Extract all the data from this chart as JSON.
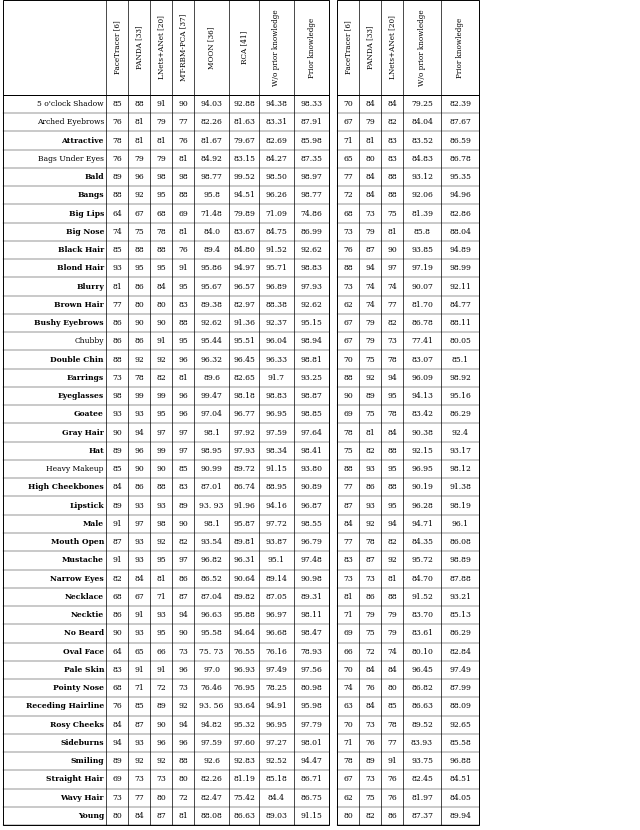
{
  "attributes": [
    "5 o'clock Shadow",
    "Arched Eyebrows",
    "Attractive",
    "Bags Under Eyes",
    "Bald",
    "Bangs",
    "Big Lips",
    "Big Nose",
    "Black Hair",
    "Blond Hair",
    "Blurry",
    "Brown Hair",
    "Bushy Eyebrows",
    "Chubby",
    "Double Chin",
    "Earrings",
    "Eyeglasses",
    "Goatee",
    "Gray Hair",
    "Hat",
    "Heavy Makeup",
    "High Cheekbones",
    "Lipstick",
    "Male",
    "Mouth Open",
    "Mustache",
    "Narrow Eyes",
    "Necklace",
    "Necktie",
    "No Beard",
    "Oval Face",
    "Pale Skin",
    "Pointy Nose",
    "Receding Hairline",
    "Rosy Cheeks",
    "Sideburns",
    "Smiling",
    "Straight Hair",
    "Wavy Hair",
    "Young"
  ],
  "bold_attrs": [
    "Attractive",
    "Bald",
    "Bangs",
    "Big Lips",
    "Big Nose",
    "Black Hair",
    "Blond Hair",
    "Blurry",
    "Brown Hair",
    "Bushy Eyebrows",
    "Double Chin",
    "Earrings",
    "Eyeglasses",
    "Goatee",
    "Gray Hair",
    "Hat",
    "High Cheekbones",
    "Lipstick",
    "Male",
    "Mouth Open",
    "Mustache",
    "Narrow Eyes",
    "Necklace",
    "Necktie",
    "No Beard",
    "Oval Face",
    "Pale Skin",
    "Pointy Nose",
    "Receding Hairline",
    "Rosy Cheeks",
    "Sideburns",
    "Smiling",
    "Straight Hair",
    "Wavy Hair",
    "Young"
  ],
  "left_headers": [
    "FaceTracer [6]",
    "PANDA [33]",
    "LNets+ANet [20]",
    "MT-RBM-PCA [37]",
    "MOON [36]",
    "RCA [41]",
    "W/o prior knowledge",
    "Prior knowledge"
  ],
  "left_data": [
    [
      85,
      88,
      91,
      90,
      "94.03",
      "92.88",
      "94.38",
      "98.33"
    ],
    [
      76,
      81,
      79,
      77,
      "82.26",
      "81.63",
      "83.31",
      "87.91"
    ],
    [
      78,
      81,
      81,
      76,
      "81.67",
      "79.67",
      "82.69",
      "85.98"
    ],
    [
      76,
      79,
      79,
      81,
      "84.92",
      "83.15",
      "84.27",
      "87.35"
    ],
    [
      89,
      96,
      98,
      98,
      "98.77",
      "99.52",
      "98.50",
      "98.97"
    ],
    [
      88,
      92,
      95,
      88,
      "95.8",
      "94.51",
      "96.26",
      "98.77"
    ],
    [
      64,
      67,
      68,
      69,
      "71.48",
      "79.89",
      "71.09",
      "74.86"
    ],
    [
      74,
      75,
      78,
      81,
      "84.0",
      "83.67",
      "84.75",
      "86.99"
    ],
    [
      85,
      88,
      88,
      76,
      "89.4",
      "84.80",
      "91.52",
      "92.62"
    ],
    [
      93,
      95,
      95,
      91,
      "95.86",
      "94.97",
      "95.71",
      "98.83"
    ],
    [
      81,
      86,
      84,
      95,
      "95.67",
      "96.57",
      "96.89",
      "97.93"
    ],
    [
      77,
      80,
      80,
      83,
      "89.38",
      "82.97",
      "88.38",
      "92.62"
    ],
    [
      86,
      90,
      90,
      88,
      "92.62",
      "91.36",
      "92.37",
      "95.15"
    ],
    [
      86,
      86,
      91,
      95,
      "95.44",
      "95.51",
      "96.04",
      "98.94"
    ],
    [
      88,
      92,
      92,
      96,
      "96.32",
      "96.45",
      "96.33",
      "98.81"
    ],
    [
      73,
      78,
      82,
      81,
      "89.6",
      "82.65",
      "91.7",
      "93.25"
    ],
    [
      98,
      99,
      99,
      96,
      "99.47",
      "98.18",
      "98.83",
      "98.87"
    ],
    [
      93,
      93,
      95,
      96,
      "97.04",
      "96.77",
      "96.95",
      "98.85"
    ],
    [
      90,
      94,
      97,
      97,
      "98.1",
      "97.92",
      "97.59",
      "97.64"
    ],
    [
      89,
      96,
      99,
      97,
      "98.95",
      "97.93",
      "98.34",
      "98.41"
    ],
    [
      85,
      90,
      90,
      85,
      "90.99",
      "89.72",
      "91.15",
      "93.80"
    ],
    [
      84,
      86,
      88,
      83,
      "87.01",
      "86.74",
      "88.95",
      "90.89"
    ],
    [
      89,
      93,
      93,
      89,
      "93. 93",
      "91.96",
      "94.16",
      "96.87"
    ],
    [
      91,
      97,
      98,
      90,
      "98.1",
      "95.87",
      "97.72",
      "98.55"
    ],
    [
      87,
      93,
      92,
      82,
      "93.54",
      "89.81",
      "93.87",
      "96.79"
    ],
    [
      91,
      93,
      95,
      97,
      "96.82",
      "96.31",
      "95.1",
      "97.48"
    ],
    [
      82,
      84,
      81,
      86,
      "86.52",
      "90.64",
      "89.14",
      "90.98"
    ],
    [
      68,
      67,
      71,
      87,
      "87.04",
      "89.82",
      "87.05",
      "89.31"
    ],
    [
      86,
      91,
      93,
      94,
      "96.63",
      "95.88",
      "96.97",
      "98.11"
    ],
    [
      90,
      93,
      95,
      90,
      "95.58",
      "94.64",
      "96.68",
      "98.47"
    ],
    [
      64,
      65,
      66,
      73,
      "75. 73",
      "76.55",
      "76.16",
      "78.93"
    ],
    [
      83,
      91,
      91,
      96,
      "97.0",
      "96.93",
      "97.49",
      "97.56"
    ],
    [
      68,
      71,
      72,
      73,
      "76.46",
      "76.95",
      "78.25",
      "80.98"
    ],
    [
      76,
      85,
      89,
      92,
      "93. 56",
      "93.64",
      "94.91",
      "95.98"
    ],
    [
      84,
      87,
      90,
      94,
      "94.82",
      "95.32",
      "96.95",
      "97.79"
    ],
    [
      94,
      93,
      96,
      96,
      "97.59",
      "97.60",
      "97.27",
      "98.01"
    ],
    [
      89,
      92,
      92,
      88,
      "92.6",
      "92.83",
      "92.52",
      "94.47"
    ],
    [
      69,
      73,
      73,
      80,
      "82.26",
      "81.19",
      "85.18",
      "86.71"
    ],
    [
      73,
      77,
      80,
      72,
      "82.47",
      "75.42",
      "84.4",
      "86.75"
    ],
    [
      80,
      84,
      87,
      81,
      "88.08",
      "86.63",
      "89.03",
      "91.15"
    ]
  ],
  "right_headers": [
    "FaceTracer [6]",
    "PANDA [33]",
    "LNets+ANet [20]",
    "W/o prior knowledge",
    "Prior knowledge"
  ],
  "right_data": [
    [
      70,
      84,
      84,
      "79.25",
      "82.39"
    ],
    [
      67,
      79,
      82,
      "84.04",
      "87.67"
    ],
    [
      71,
      81,
      83,
      "83.52",
      "86.59"
    ],
    [
      65,
      80,
      83,
      "84.83",
      "86.78"
    ],
    [
      77,
      84,
      88,
      "93.12",
      "95.35"
    ],
    [
      72,
      84,
      88,
      "92.06",
      "94.96"
    ],
    [
      68,
      73,
      75,
      "81.39",
      "82.86"
    ],
    [
      73,
      79,
      81,
      "85.8",
      "88.04"
    ],
    [
      76,
      87,
      90,
      "93.85",
      "94.89"
    ],
    [
      88,
      94,
      97,
      "97.19",
      "98.99"
    ],
    [
      73,
      74,
      74,
      "90.07",
      "92.11"
    ],
    [
      62,
      74,
      77,
      "81.70",
      "84.77"
    ],
    [
      67,
      79,
      82,
      "86.78",
      "88.11"
    ],
    [
      67,
      79,
      73,
      "77.41",
      "80.05"
    ],
    [
      70,
      75,
      78,
      "83.07",
      "85.1"
    ],
    [
      88,
      92,
      94,
      "96.09",
      "98.92"
    ],
    [
      90,
      89,
      95,
      "94.13",
      "95.16"
    ],
    [
      69,
      75,
      78,
      "83.42",
      "86.29"
    ],
    [
      78,
      81,
      84,
      "90.38",
      "92.4"
    ],
    [
      75,
      82,
      88,
      "92.15",
      "93.17"
    ],
    [
      88,
      93,
      95,
      "96.95",
      "98.12"
    ],
    [
      77,
      86,
      88,
      "90.19",
      "91.38"
    ],
    [
      87,
      93,
      95,
      "96.28",
      "98.19"
    ],
    [
      84,
      92,
      94,
      "94.71",
      "96.1"
    ],
    [
      77,
      78,
      82,
      "84.35",
      "86.08"
    ],
    [
      83,
      87,
      92,
      "95.72",
      "98.89"
    ],
    [
      73,
      73,
      81,
      "84.70",
      "87.88"
    ],
    [
      81,
      86,
      88,
      "91.52",
      "93.21"
    ],
    [
      71,
      79,
      79,
      "83.70",
      "85.13"
    ],
    [
      69,
      75,
      79,
      "83.61",
      "86.29"
    ],
    [
      66,
      72,
      74,
      "80.10",
      "82.84"
    ],
    [
      70,
      84,
      84,
      "96.45",
      "97.49"
    ],
    [
      74,
      76,
      80,
      "86.82",
      "87.99"
    ],
    [
      63,
      84,
      85,
      "86.63",
      "88.09"
    ],
    [
      70,
      73,
      78,
      "89.52",
      "92.65"
    ],
    [
      71,
      76,
      77,
      "83.93",
      "85.58"
    ],
    [
      78,
      89,
      91,
      "93.75",
      "96.88"
    ],
    [
      67,
      73,
      76,
      "82.45",
      "84.51"
    ],
    [
      62,
      75,
      76,
      "81.97",
      "84.05"
    ],
    [
      80,
      82,
      86,
      "87.37",
      "89.94"
    ]
  ]
}
